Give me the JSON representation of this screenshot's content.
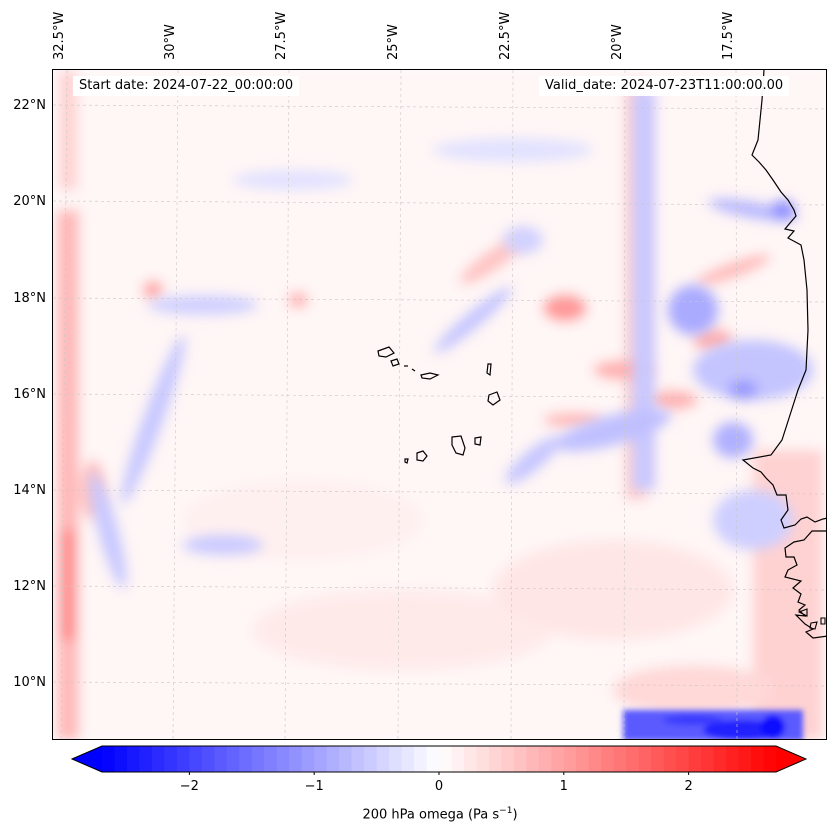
{
  "map": {
    "start_date": "Start date: 2024-07-22_00:00:00",
    "valid_date": "Valid_date: 2024-07-23T11:00:00.00",
    "lon_labels": [
      "32.5°W",
      "30°W",
      "27.5°W",
      "25°W",
      "22.5°W",
      "20°W",
      "17.5°W"
    ],
    "lat_labels": [
      "22°N",
      "20°N",
      "18°N",
      "16°N",
      "14°N",
      "12°N",
      "10°N"
    ],
    "extent": {
      "lon_min": -33.0,
      "lon_max": -16.0,
      "lat_min": 8.9,
      "lat_max": 22.8
    },
    "colors": {
      "negative": "#0000ff",
      "zero": "#ffffff",
      "positive": "#ff0000",
      "coast": "#000000",
      "grid": "#c8c8c8"
    }
  },
  "colorbar": {
    "min": -2.7,
    "max": 2.7,
    "ticks": [
      "−2",
      "−1",
      "0",
      "1",
      "2"
    ],
    "tick_values": [
      -2,
      -1,
      0,
      1,
      2
    ],
    "label": "200 hPa omega (Pa s",
    "label_exp": "−1",
    "label_close": ")"
  }
}
